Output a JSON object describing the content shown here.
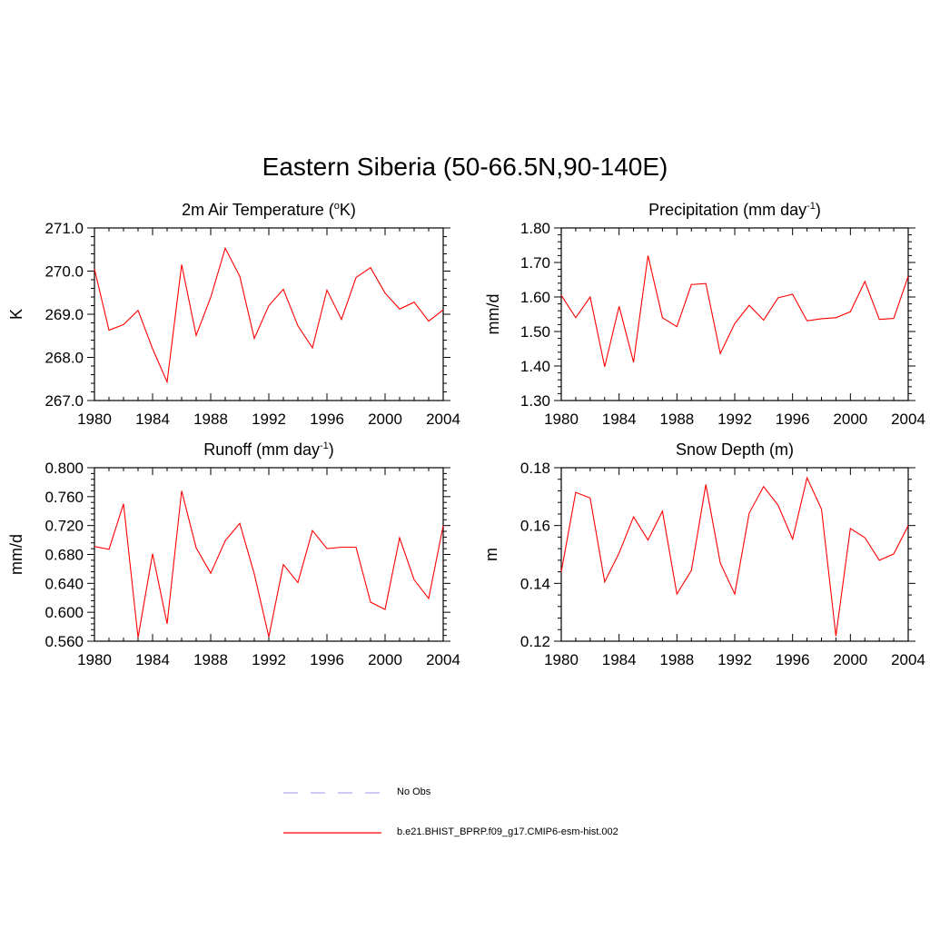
{
  "figure_title": "Eastern Siberia (50-66.5N,90-140E)",
  "legend": {
    "entries": [
      {
        "label": "No Obs",
        "style": "dashed",
        "color": "#aaaaee"
      },
      {
        "label": "b.e21.BHIST_BPRP.f09_g17.CMIP6-esm-hist.002",
        "style": "solid",
        "color": "#ff0000"
      }
    ]
  },
  "chart_data": [
    {
      "type": "line",
      "title": "2m Air Temperature (",
      "title_sup": "o",
      "title_post": "K)",
      "ylabel": "K",
      "xlabel": "",
      "xlim": [
        1980,
        2004
      ],
      "ylim": [
        267.0,
        271.0
      ],
      "xticks": [
        "1980",
        "1984",
        "1988",
        "1992",
        "1996",
        "2000",
        "2004"
      ],
      "yticks": [
        "267.0",
        "268.0",
        "269.0",
        "270.0",
        "271.0"
      ],
      "series": [
        {
          "name": "b.e21.BHIST_BPRP.f09_g17.CMIP6-esm-hist.002",
          "color": "#ff0000",
          "x": [
            1980,
            1981,
            1982,
            1983,
            1984,
            1985,
            1986,
            1987,
            1988,
            1989,
            1990,
            1991,
            1992,
            1993,
            1994,
            1995,
            1996,
            1997,
            1998,
            1999,
            2000,
            2001,
            2002,
            2003,
            2004
          ],
          "values": [
            270.05,
            268.63,
            268.76,
            269.09,
            268.2,
            267.43,
            270.15,
            268.51,
            269.39,
            270.53,
            269.88,
            268.44,
            269.2,
            269.58,
            268.73,
            268.22,
            269.56,
            268.88,
            269.85,
            270.08,
            269.49,
            269.12,
            269.28,
            268.84,
            269.1
          ]
        }
      ]
    },
    {
      "type": "line",
      "title": "Precipitation (mm day",
      "title_sup": "-1",
      "title_post": ")",
      "ylabel": "mm/d",
      "xlabel": "",
      "xlim": [
        1980,
        2004
      ],
      "ylim": [
        1.3,
        1.8
      ],
      "xticks": [
        "1980",
        "1984",
        "1988",
        "1992",
        "1996",
        "2000",
        "2004"
      ],
      "yticks": [
        "1.30",
        "1.40",
        "1.50",
        "1.60",
        "1.70",
        "1.80"
      ],
      "series": [
        {
          "name": "b.e21.BHIST_BPRP.f09_g17.CMIP6-esm-hist.002",
          "color": "#ff0000",
          "x": [
            1980,
            1981,
            1982,
            1983,
            1984,
            1985,
            1986,
            1987,
            1988,
            1989,
            1990,
            1991,
            1992,
            1993,
            1994,
            1995,
            1996,
            1997,
            1998,
            1999,
            2000,
            2001,
            2002,
            2003,
            2004
          ],
          "values": [
            1.605,
            1.54,
            1.6,
            1.398,
            1.573,
            1.411,
            1.72,
            1.54,
            1.514,
            1.636,
            1.639,
            1.436,
            1.523,
            1.576,
            1.533,
            1.598,
            1.608,
            1.531,
            1.537,
            1.54,
            1.557,
            1.645,
            1.535,
            1.538,
            1.66
          ]
        }
      ]
    },
    {
      "type": "line",
      "title": "Runoff (mm day",
      "title_sup": "-1",
      "title_post": ")",
      "ylabel": "mm/d",
      "xlabel": "",
      "xlim": [
        1980,
        2004
      ],
      "ylim": [
        0.56,
        0.8
      ],
      "xticks": [
        "1980",
        "1984",
        "1988",
        "1992",
        "1996",
        "2000",
        "2004"
      ],
      "yticks": [
        "0.560",
        "0.600",
        "0.640",
        "0.680",
        "0.720",
        "0.760",
        "0.800"
      ],
      "series": [
        {
          "name": "b.e21.BHIST_BPRP.f09_g17.CMIP6-esm-hist.002",
          "color": "#ff0000",
          "x": [
            1980,
            1981,
            1982,
            1983,
            1984,
            1985,
            1986,
            1987,
            1988,
            1989,
            1990,
            1991,
            1992,
            1993,
            1994,
            1995,
            1996,
            1997,
            1998,
            1999,
            2000,
            2001,
            2002,
            2003,
            2004
          ],
          "values": [
            0.691,
            0.687,
            0.75,
            0.565,
            0.681,
            0.584,
            0.768,
            0.689,
            0.654,
            0.699,
            0.723,
            0.653,
            0.566,
            0.666,
            0.641,
            0.713,
            0.688,
            0.69,
            0.69,
            0.614,
            0.604,
            0.703,
            0.645,
            0.619,
            0.72
          ]
        }
      ]
    },
    {
      "type": "line",
      "title": "Snow Depth (m)",
      "title_sup": "",
      "title_post": "",
      "ylabel": "m",
      "xlabel": "",
      "xlim": [
        1980,
        2004
      ],
      "ylim": [
        0.12,
        0.18
      ],
      "xticks": [
        "1980",
        "1984",
        "1988",
        "1992",
        "1996",
        "2000",
        "2004"
      ],
      "yticks": [
        "0.12",
        "0.14",
        "0.16",
        "0.18"
      ],
      "series": [
        {
          "name": "b.e21.BHIST_BPRP.f09_g17.CMIP6-esm-hist.002",
          "color": "#ff0000",
          "x": [
            1980,
            1981,
            1982,
            1983,
            1984,
            1985,
            1986,
            1987,
            1988,
            1989,
            1990,
            1991,
            1992,
            1993,
            1994,
            1995,
            1996,
            1997,
            1998,
            1999,
            2000,
            2001,
            2002,
            2003,
            2004
          ],
          "values": [
            0.144,
            0.1715,
            0.1695,
            0.1405,
            0.1505,
            0.163,
            0.155,
            0.165,
            0.1363,
            0.1445,
            0.1742,
            0.147,
            0.1363,
            0.1643,
            0.1735,
            0.167,
            0.1553,
            0.1765,
            0.1657,
            0.1218,
            0.159,
            0.1558,
            0.148,
            0.1502,
            0.16
          ]
        }
      ]
    }
  ]
}
